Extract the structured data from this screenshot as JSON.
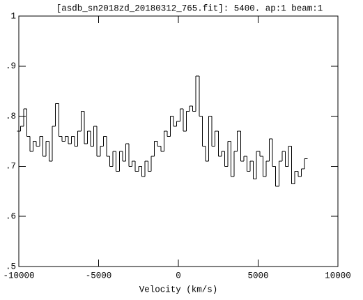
{
  "chart_data": {
    "type": "line",
    "title": "[asdb_sn2018zd_20180312_765.fit]:  5400. ap:1 beam:1",
    "x_label": "Velocity (km/s)",
    "step": true,
    "color": "#000000",
    "x": [
      -10000,
      -9800,
      -9600,
      -9400,
      -9200,
      -9000,
      -8800,
      -8600,
      -8400,
      -8200,
      -8000,
      -7800,
      -7600,
      -7400,
      -7200,
      -7000,
      -6800,
      -6600,
      -6400,
      -6200,
      -6000,
      -5800,
      -5600,
      -5400,
      -5200,
      -5000,
      -4800,
      -4600,
      -4400,
      -4200,
      -4000,
      -3800,
      -3600,
      -3400,
      -3200,
      -3000,
      -2800,
      -2600,
      -2400,
      -2200,
      -2000,
      -1800,
      -1600,
      -1400,
      -1200,
      -1000,
      -800,
      -600,
      -400,
      -200,
      0,
      200,
      400,
      600,
      800,
      1000,
      1200,
      1400,
      1600,
      1800,
      2000,
      2200,
      2400,
      2600,
      2800,
      3000,
      3200,
      3400,
      3600,
      3800,
      4000,
      4200,
      4400,
      4600,
      4800,
      5000,
      5200,
      5400,
      5600,
      5800,
      6000,
      6200,
      6400,
      6600,
      6800,
      7000,
      7200,
      7400,
      7600,
      7800,
      8000
    ],
    "values": [
      0.77,
      0.78,
      0.815,
      0.76,
      0.73,
      0.75,
      0.74,
      0.76,
      0.72,
      0.75,
      0.71,
      0.78,
      0.825,
      0.76,
      0.75,
      0.76,
      0.745,
      0.76,
      0.74,
      0.77,
      0.81,
      0.745,
      0.77,
      0.74,
      0.78,
      0.72,
      0.74,
      0.76,
      0.72,
      0.7,
      0.73,
      0.69,
      0.73,
      0.71,
      0.745,
      0.7,
      0.71,
      0.69,
      0.7,
      0.68,
      0.71,
      0.69,
      0.72,
      0.75,
      0.74,
      0.73,
      0.77,
      0.76,
      0.8,
      0.78,
      0.79,
      0.815,
      0.77,
      0.81,
      0.82,
      0.81,
      0.88,
      0.8,
      0.74,
      0.71,
      0.8,
      0.74,
      0.77,
      0.72,
      0.73,
      0.7,
      0.75,
      0.68,
      0.73,
      0.77,
      0.71,
      0.72,
      0.69,
      0.71,
      0.675,
      0.73,
      0.72,
      0.68,
      0.71,
      0.755,
      0.7,
      0.66,
      0.71,
      0.73,
      0.7,
      0.74,
      0.665,
      0.69,
      0.68,
      0.695,
      0.715
    ],
    "xlim": [
      -10000,
      10000
    ],
    "xticks": [
      -10000,
      -5000,
      0,
      5000,
      10000
    ],
    "ylim": [
      0.5,
      1
    ],
    "yticks": [
      {
        "value": 0.5,
        "label": ".5"
      },
      {
        "value": 0.6,
        "label": ".6"
      },
      {
        "value": 0.7,
        "label": ".7"
      },
      {
        "value": 0.8,
        "label": ".8"
      },
      {
        "value": 0.9,
        "label": ".9"
      },
      1
    ]
  }
}
